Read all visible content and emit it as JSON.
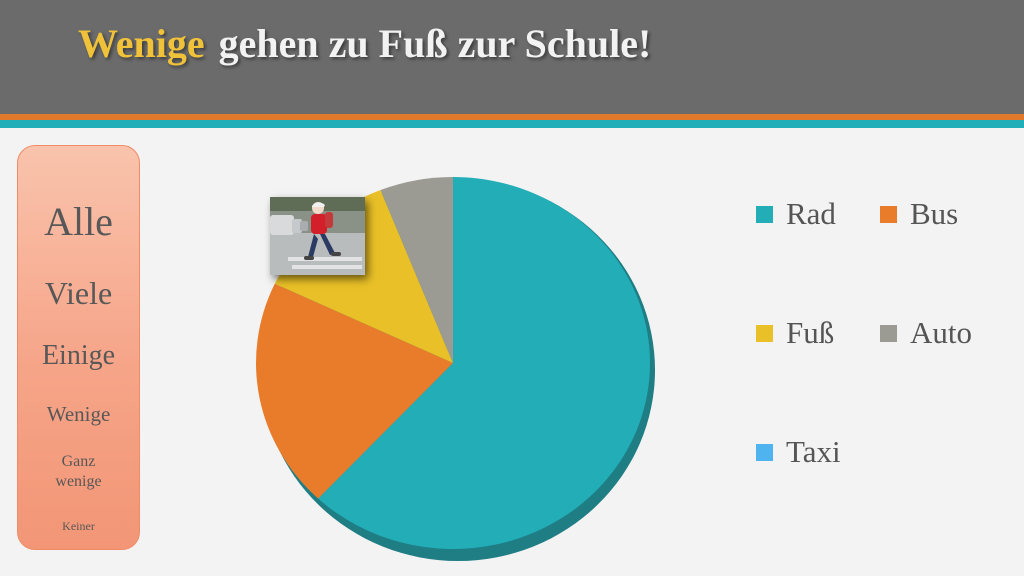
{
  "title": {
    "highlight": "Wenige",
    "rest": "gehen zu Fuß zur Schule!"
  },
  "scale": [
    "Alle",
    "Viele",
    "Einige",
    "Wenige",
    "Ganz wenige",
    "Keiner"
  ],
  "colors": {
    "header": "#6b6b6b",
    "title_highlight": "#f0c23a",
    "stripe_orange": "#e07a2a",
    "stripe_teal": "#21aeb8"
  },
  "chart_data": {
    "type": "pie",
    "title": "",
    "categories": [
      "Rad",
      "Bus",
      "Fuß",
      "Auto",
      "Taxi"
    ],
    "values": [
      62,
      20,
      12,
      6,
      0
    ],
    "colors": [
      "#22adb7",
      "#e87c2b",
      "#e9c027",
      "#9b9b93",
      "#4fb3ef"
    ],
    "legend": "right"
  }
}
